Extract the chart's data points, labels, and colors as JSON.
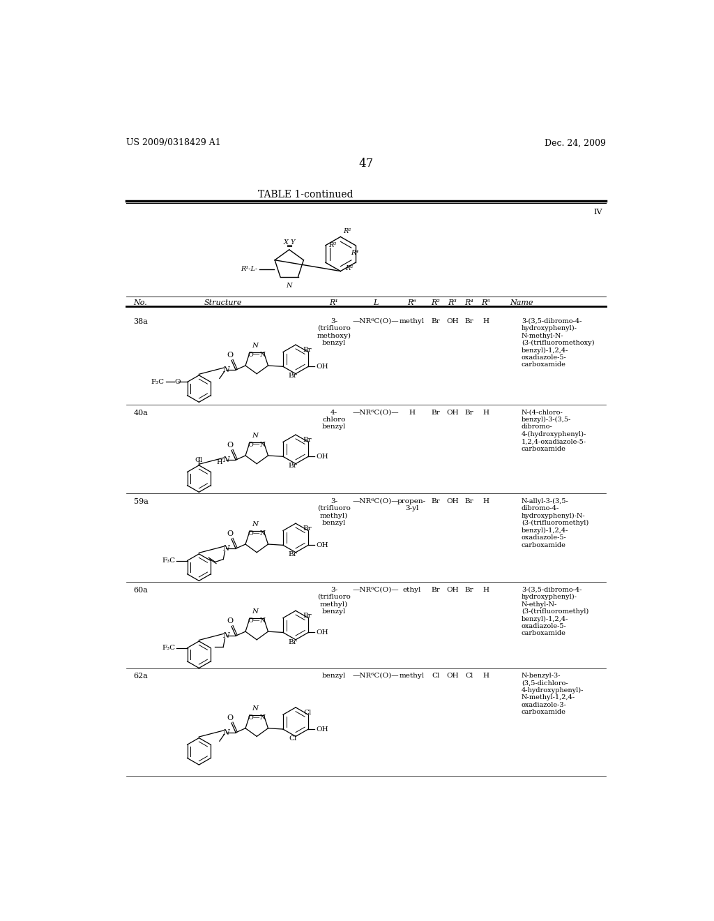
{
  "page_header_left": "US 2009/0318429 A1",
  "page_header_right": "Dec. 24, 2009",
  "page_number": "47",
  "table_title": "TABLE 1-continued",
  "table_label": "IV",
  "rows": [
    {
      "no": "38a",
      "r1": "3-\n(trifluoro\nmethoxy)\nbenzyl",
      "l": "—NR⁶C(O)—",
      "r6": "methyl",
      "r2": "Br",
      "r3": "OH",
      "r4": "Br",
      "r5": "H",
      "name": "3-(3,5-dibromo-4-\nhydroxyphenyl)-\nN-methyl-N-\n(3-(trifluoromethoxy)\nbenzyl)-1,2,4-\noxadiazole-5-\ncarboxamide",
      "left_sub": "F3CO",
      "n_sub": "methyl",
      "right_halo": "Br"
    },
    {
      "no": "40a",
      "r1": "4-\nchloro\nbenzyl",
      "l": "—NR⁶C(O)—",
      "r6": "H",
      "r2": "Br",
      "r3": "OH",
      "r4": "Br",
      "r5": "H",
      "name": "N-(4-chloro-\nbenzyl)-3-(3,5-\ndibromo-\n4-(hydroxyphenyl)-\n1,2,4-oxadiazole-5-\ncarboxamide",
      "left_sub": "Cl_para",
      "n_sub": "H",
      "right_halo": "Br"
    },
    {
      "no": "59a",
      "r1": "3-\n(trifluoro\nmethyl)\nbenzyl",
      "l": "—NR⁶C(O)—",
      "r6": "propen-\n3-yl",
      "r2": "Br",
      "r3": "OH",
      "r4": "Br",
      "r5": "H",
      "name": "N-allyl-3-(3,5-\ndibromo-4-\nhydroxyphenyl)-N-\n(3-(trifluoromethyl)\nbenzyl)-1,2,4-\noxadiazole-5-\ncarboxamide",
      "left_sub": "F3C",
      "n_sub": "allyl",
      "right_halo": "Br"
    },
    {
      "no": "60a",
      "r1": "3-\n(trifluoro\nmethyl)\nbenzyl",
      "l": "—NR⁶C(O)—",
      "r6": "ethyl",
      "r2": "Br",
      "r3": "OH",
      "r4": "Br",
      "r5": "H",
      "name": "3-(3,5-dibromo-4-\nhydroxyphenyl)-\nN-ethyl-N-\n(3-(trifluoromethyl)\nbenzyl)-1,2,4-\noxadiazole-5-\ncarboxamide",
      "left_sub": "F3C",
      "n_sub": "ethyl",
      "right_halo": "Br"
    },
    {
      "no": "62a",
      "r1": "benzyl",
      "l": "—NR⁶C(O)—",
      "r6": "methyl",
      "r2": "Cl",
      "r3": "OH",
      "r4": "Cl",
      "r5": "H",
      "name": "N-benzyl-3-\n(3,5-dichloro-\n4-hydroxyphenyl)-\nN-methyl-1,2,4-\noxadiazole-3-\ncarboxamide",
      "left_sub": "none",
      "n_sub": "methyl",
      "right_halo": "Cl"
    }
  ],
  "bg_color": "#ffffff",
  "text_color": "#000000"
}
